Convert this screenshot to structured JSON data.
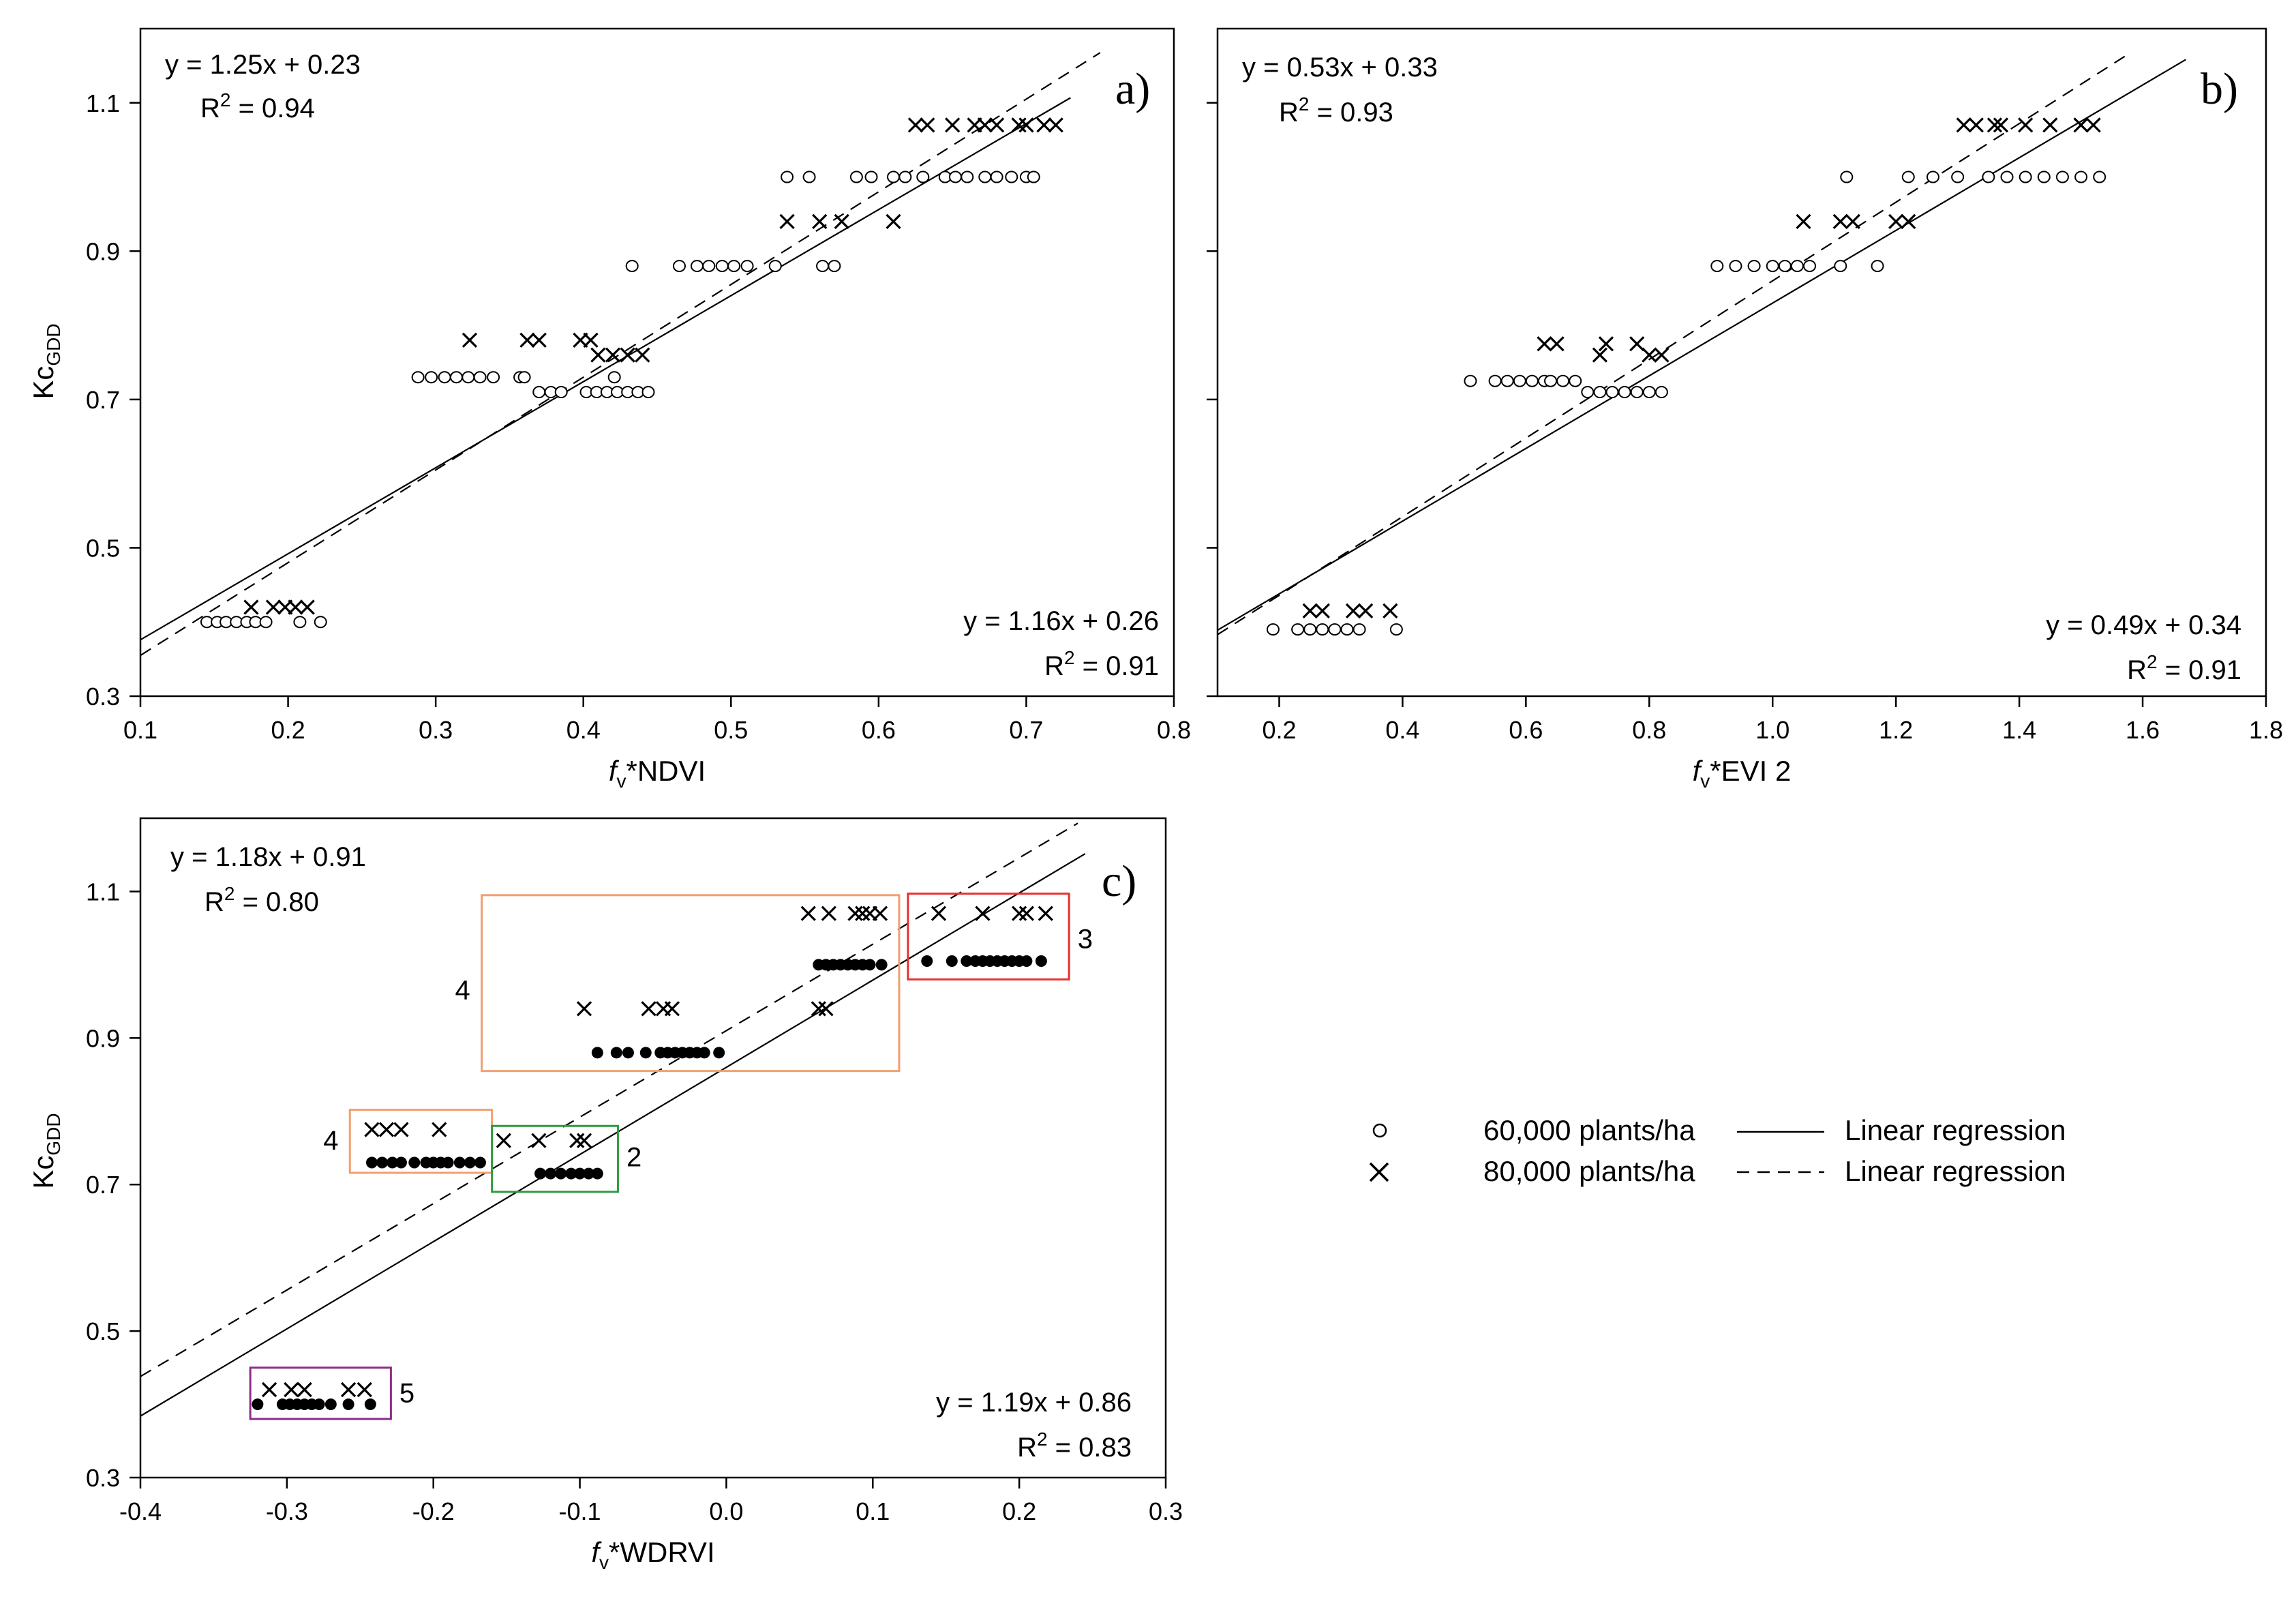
{
  "figure": {
    "legend": [
      {
        "marker": "open-circle",
        "label": "60,000 plants/ha",
        "line_style": "solid",
        "line_label": "Linear regression"
      },
      {
        "marker": "cross",
        "label": "80,000 plants/ha",
        "line_style": "dashed",
        "line_label": "Linear regression"
      }
    ]
  },
  "chart_data": [
    {
      "panel": "a)",
      "type": "scatter",
      "xlabel_f": "f",
      "xlabel_sub": "v",
      "xlabel_rest": "*NDVI",
      "ylabel_main": "Kc",
      "ylabel_sub": "GDD",
      "xlim": [
        0.1,
        0.8
      ],
      "ylim": [
        0.3,
        1.2
      ],
      "xticks": [
        "0.1",
        "0.2",
        "0.3",
        "0.4",
        "0.5",
        "0.6",
        "0.7",
        "0.8"
      ],
      "yticks": [
        "0.3",
        "0.5",
        "0.7",
        "0.9",
        "1.1"
      ],
      "xtick_values": [
        0.1,
        0.2,
        0.3,
        0.4,
        0.5,
        0.6,
        0.7,
        0.8
      ],
      "ytick_values": [
        0.3,
        0.5,
        0.7,
        0.9,
        1.1
      ],
      "eq_80": {
        "text": "y = 1.25x + 0.23",
        "r2_prefix": "R",
        "r2_sup": "2",
        "r2_value": " = 0.94"
      },
      "eq_60": {
        "text": "y = 1.16x + 0.26",
        "r2_prefix": "R",
        "r2_sup": "2",
        "r2_value": " = 0.91"
      },
      "line_60": {
        "slope": 1.16,
        "intercept": 0.26,
        "x_range": [
          0.1,
          0.73
        ]
      },
      "line_80": {
        "slope": 1.25,
        "intercept": 0.23,
        "x_range": [
          0.1,
          0.75
        ]
      },
      "series": [
        {
          "name": "60,000 plants/ha",
          "marker": "open-circle",
          "groups": [
            {
              "y": 0.4,
              "x": [
                0.145,
                0.152,
                0.158,
                0.165,
                0.172,
                0.178,
                0.185,
                0.208,
                0.222
              ]
            },
            {
              "y": 0.73,
              "x": [
                0.288,
                0.297,
                0.306,
                0.314,
                0.322,
                0.33,
                0.339,
                0.357,
                0.36
              ]
            },
            {
              "y": 0.71,
              "x": [
                0.37,
                0.378,
                0.385,
                0.402,
                0.409,
                0.416,
                0.423,
                0.43,
                0.437,
                0.444
              ]
            },
            {
              "y": 0.73,
              "x": [
                0.421
              ]
            },
            {
              "y": 0.88,
              "x": [
                0.433,
                0.465,
                0.477,
                0.485,
                0.494,
                0.502,
                0.511,
                0.53,
                0.562,
                0.57
              ]
            },
            {
              "y": 1.0,
              "x": [
                0.538,
                0.553,
                0.585,
                0.595,
                0.61,
                0.618,
                0.63,
                0.645,
                0.652,
                0.66,
                0.672,
                0.68,
                0.69,
                0.7,
                0.705
              ]
            }
          ]
        },
        {
          "name": "80,000 plants/ha",
          "marker": "cross",
          "groups": [
            {
              "y": 0.42,
              "x": [
                0.175,
                0.19,
                0.198,
                0.205,
                0.213
              ]
            },
            {
              "y": 0.78,
              "x": [
                0.323,
                0.362,
                0.37,
                0.398,
                0.405
              ]
            },
            {
              "y": 0.76,
              "x": [
                0.41,
                0.42,
                0.43,
                0.44
              ]
            },
            {
              "y": 0.94,
              "x": [
                0.538,
                0.56,
                0.575,
                0.61
              ]
            },
            {
              "y": 1.07,
              "x": [
                0.625,
                0.633,
                0.65,
                0.665,
                0.672,
                0.68,
                0.695,
                0.7,
                0.712,
                0.72
              ]
            }
          ]
        }
      ]
    },
    {
      "panel": "b)",
      "type": "scatter",
      "xlabel_f": "f",
      "xlabel_sub": "v",
      "xlabel_rest": "*EVI 2",
      "xlim": [
        0.1,
        1.8
      ],
      "ylim": [
        0.3,
        1.2
      ],
      "xticks": [
        "0.2",
        "0.4",
        "0.6",
        "0.8",
        "1.0",
        "1.2",
        "1.4",
        "1.6",
        "1.8"
      ],
      "xtick_values": [
        0.2,
        0.4,
        0.6,
        0.8,
        1.0,
        1.2,
        1.4,
        1.6,
        1.8
      ],
      "ytick_values": [
        0.3,
        0.5,
        0.7,
        0.9,
        1.1
      ],
      "eq_80": {
        "text": "y = 0.53x + 0.33",
        "r2_prefix": "R",
        "r2_sup": "2",
        "r2_value": " = 0.93"
      },
      "eq_60": {
        "text": "y = 0.49x + 0.34",
        "r2_prefix": "R",
        "r2_sup": "2",
        "r2_value": " = 0.91"
      },
      "line_60": {
        "slope": 0.49,
        "intercept": 0.34,
        "x_range": [
          0.1,
          1.67
        ]
      },
      "line_80": {
        "slope": 0.53,
        "intercept": 0.33,
        "x_range": [
          0.1,
          1.58
        ]
      },
      "series": [
        {
          "name": "60,000 plants/ha",
          "marker": "open-circle",
          "groups": [
            {
              "y": 0.39,
              "x": [
                0.19,
                0.23,
                0.25,
                0.27,
                0.29,
                0.31,
                0.33,
                0.39
              ]
            },
            {
              "y": 0.725,
              "x": [
                0.51,
                0.55,
                0.57,
                0.59,
                0.61,
                0.63,
                0.64,
                0.66,
                0.68
              ]
            },
            {
              "y": 0.71,
              "x": [
                0.7,
                0.72,
                0.74,
                0.76,
                0.78,
                0.8,
                0.82
              ]
            },
            {
              "y": 0.88,
              "x": [
                0.91,
                0.94,
                0.97,
                1.0,
                1.02,
                1.04,
                1.06,
                1.11,
                1.17
              ]
            },
            {
              "y": 1.0,
              "x": [
                1.12,
                1.22,
                1.26,
                1.3,
                1.35,
                1.38,
                1.41,
                1.44,
                1.47,
                1.5,
                1.53
              ]
            }
          ]
        },
        {
          "name": "80,000 plants/ha",
          "marker": "cross",
          "groups": [
            {
              "y": 0.415,
              "x": [
                0.25,
                0.27,
                0.32,
                0.34,
                0.38
              ]
            },
            {
              "y": 0.775,
              "x": [
                0.63,
                0.65,
                0.73,
                0.78
              ]
            },
            {
              "y": 0.76,
              "x": [
                0.72,
                0.8,
                0.82
              ]
            },
            {
              "y": 0.94,
              "x": [
                1.05,
                1.11,
                1.13,
                1.2,
                1.22
              ]
            },
            {
              "y": 1.07,
              "x": [
                1.31,
                1.33,
                1.36,
                1.37,
                1.41,
                1.45,
                1.5,
                1.52
              ]
            }
          ]
        }
      ]
    },
    {
      "panel": "c)",
      "type": "scatter",
      "xlabel_f": "f",
      "xlabel_sub": "v",
      "xlabel_rest": "*WDRVI",
      "ylabel_main": "Kc",
      "ylabel_sub": "GDD",
      "xlim": [
        -0.4,
        0.3
      ],
      "ylim": [
        0.3,
        1.2
      ],
      "xticks": [
        "-0.4",
        "-0.3",
        "-0.2",
        "-0.1",
        "0.0",
        "0.1",
        "0.2",
        "0.3"
      ],
      "yticks": [
        "0.3",
        "0.5",
        "0.7",
        "0.9",
        "1.1"
      ],
      "xtick_values": [
        -0.4,
        -0.3,
        -0.2,
        -0.1,
        0.0,
        0.1,
        0.2,
        0.3
      ],
      "ytick_values": [
        0.3,
        0.5,
        0.7,
        0.9,
        1.1
      ],
      "eq_80": {
        "text": "y = 1.18x + 0.91",
        "r2_prefix": "R",
        "r2_sup": "2",
        "r2_value": " = 0.80"
      },
      "eq_60": {
        "text": "y = 1.19x + 0.86",
        "r2_prefix": "R",
        "r2_sup": "2",
        "r2_value": " = 0.83"
      },
      "line_60": {
        "slope": 1.19,
        "intercept": 0.86,
        "x_range": [
          -0.4,
          0.245
        ]
      },
      "line_80": {
        "slope": 1.18,
        "intercept": 0.91,
        "x_range": [
          -0.4,
          0.24
        ]
      },
      "series": [
        {
          "name": "60,000 plants/ha",
          "marker": "filled-circle",
          "groups": [
            {
              "y": 0.4,
              "x": [
                -0.32,
                -0.303,
                -0.298,
                -0.293,
                -0.288,
                -0.283,
                -0.278,
                -0.27,
                -0.258,
                -0.243
              ]
            },
            {
              "y": 0.73,
              "x": [
                -0.242,
                -0.235,
                -0.228,
                -0.222,
                -0.213,
                -0.205,
                -0.2,
                -0.195,
                -0.19,
                -0.182,
                -0.175,
                -0.168
              ]
            },
            {
              "y": 0.715,
              "x": [
                -0.127,
                -0.12,
                -0.113,
                -0.106,
                -0.1,
                -0.094,
                -0.088
              ]
            },
            {
              "y": 0.88,
              "x": [
                -0.088,
                -0.075,
                -0.067,
                -0.055,
                -0.045,
                -0.04,
                -0.035,
                -0.03,
                -0.025,
                -0.02,
                -0.015,
                -0.005
              ]
            },
            {
              "y": 1.0,
              "x": [
                0.063,
                0.068,
                0.073,
                0.078,
                0.083,
                0.088,
                0.093,
                0.098,
                0.106
              ]
            },
            {
              "y": 1.005,
              "x": [
                0.137,
                0.154,
                0.164,
                0.17,
                0.175,
                0.18,
                0.185,
                0.19,
                0.195,
                0.2,
                0.205,
                0.215
              ]
            }
          ]
        },
        {
          "name": "80,000 plants/ha",
          "marker": "cross",
          "groups": [
            {
              "y": 0.42,
              "x": [
                -0.312,
                -0.297,
                -0.288,
                -0.258,
                -0.247
              ]
            },
            {
              "y": 0.775,
              "x": [
                -0.242,
                -0.232,
                -0.222,
                -0.196
              ]
            },
            {
              "y": 0.76,
              "x": [
                -0.152,
                -0.128,
                -0.102,
                -0.097
              ]
            },
            {
              "y": 0.94,
              "x": [
                -0.097,
                -0.053,
                -0.043,
                -0.037,
                0.063,
                0.068
              ]
            },
            {
              "y": 1.07,
              "x": [
                0.056,
                0.07,
                0.088,
                0.093,
                0.098,
                0.105,
                0.145,
                0.175,
                0.2,
                0.205,
                0.218
              ]
            }
          ]
        }
      ],
      "annotations": [
        {
          "label": "4",
          "color": "#F0A070"
        },
        {
          "label": "3",
          "color": "#E8312E"
        },
        {
          "label": "4",
          "color": "#F0A070"
        },
        {
          "label": "2",
          "color": "#2E9B3E"
        },
        {
          "label": "5",
          "color": "#8E2D85"
        }
      ]
    }
  ]
}
